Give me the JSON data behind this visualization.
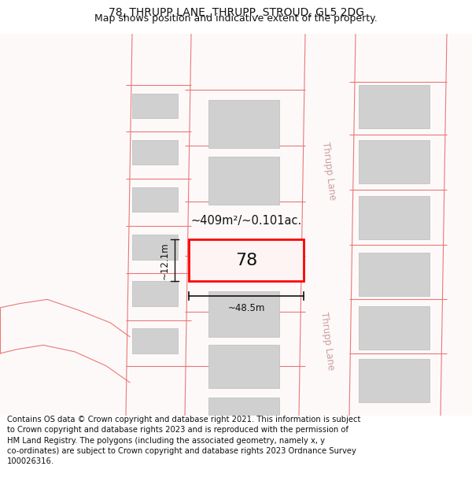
{
  "title_line1": "78, THRUPP LANE, THRUPP, STROUD, GL5 2DG",
  "title_line2": "Map shows position and indicative extent of the property.",
  "footer_text": "Contains OS data © Crown copyright and database right 2021. This information is subject\nto Crown copyright and database rights 2023 and is reproduced with the permission of\nHM Land Registry. The polygons (including the associated geometry, namely x, y\nco-ordinates) are subject to Crown copyright and database rights 2023 Ordnance Survey\n100026316.",
  "background_color": "#ffffff",
  "map_bg_color": "#fef9f9",
  "plot_color": "#ff0000",
  "road_line_color": "#e87878",
  "building_fill": "#d0d0d0",
  "building_edge": "#bbbbbb",
  "dim_color": "#111111",
  "label_78": "78",
  "area_label": "~409m²/~0.101ac.",
  "dim_width": "~48.5m",
  "dim_height": "~12.1m",
  "street_label": "Thrupp Lane",
  "title_fontsize": 10,
  "subtitle_fontsize": 9,
  "footer_fontsize": 7.2
}
